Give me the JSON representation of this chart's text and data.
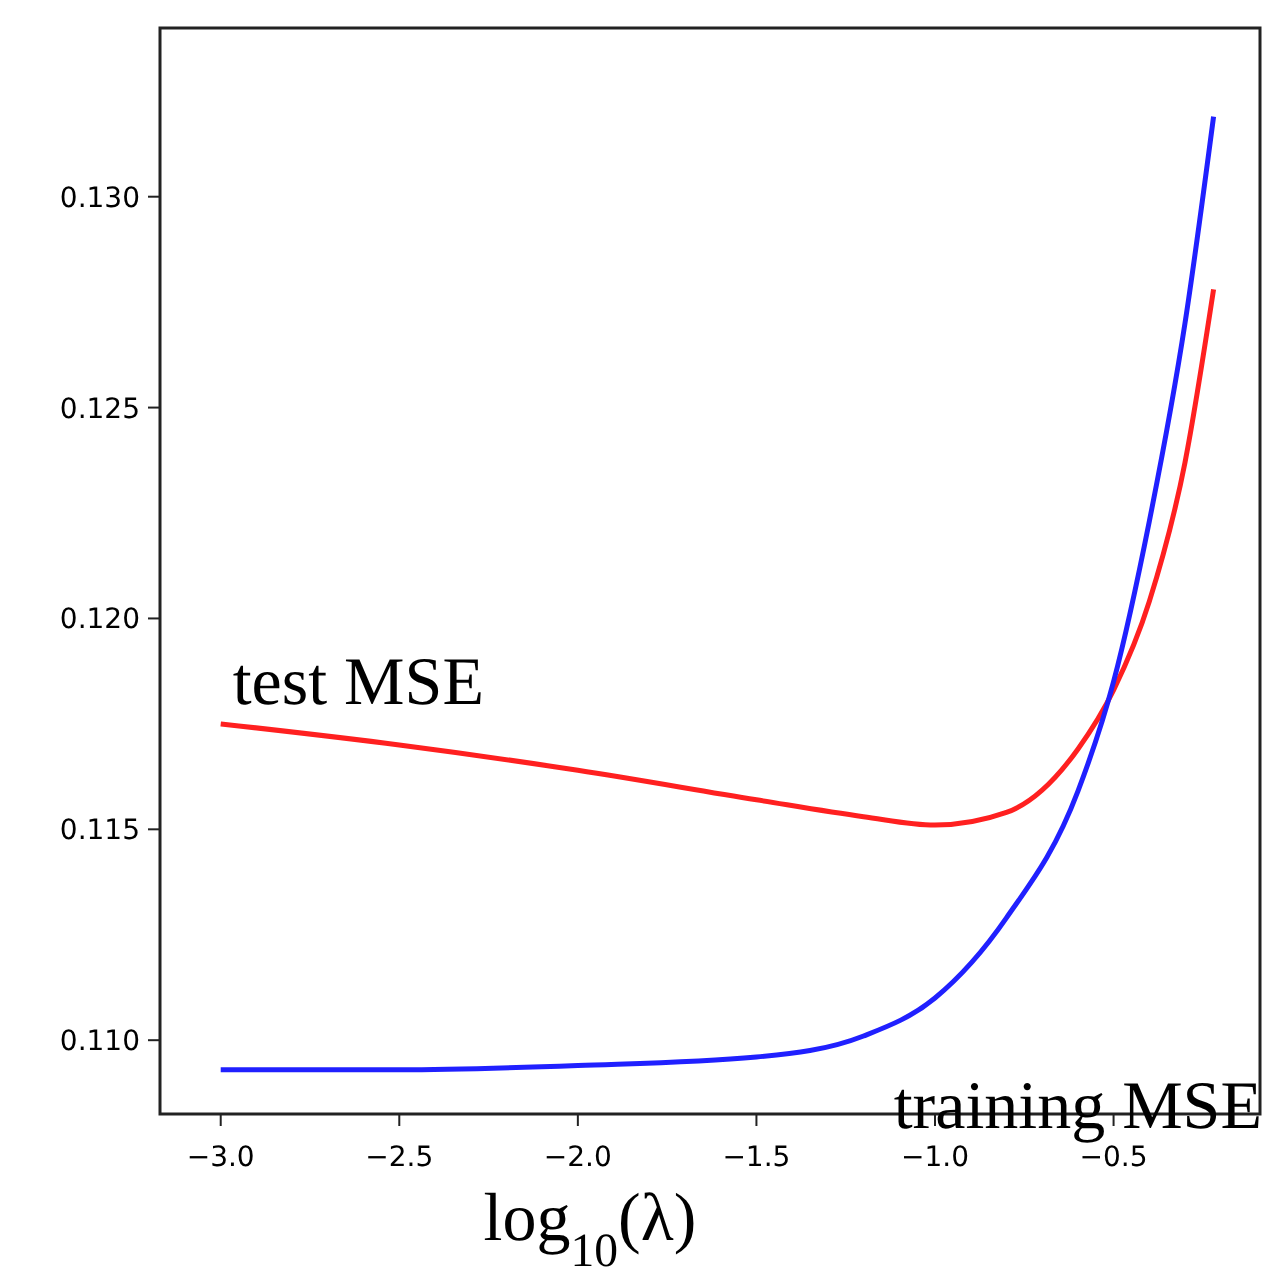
{
  "chart_data": {
    "type": "line",
    "xlabel": "log$_{10}$(λ)",
    "xlim": [
      -3.17,
      -0.09
    ],
    "ylim": [
      0.10825,
      0.134
    ],
    "xticks": [
      {
        "value": -3,
        "label": "−3.0"
      },
      {
        "value": -2.5,
        "label": "−2.5"
      },
      {
        "value": -2,
        "label": "−2.0"
      },
      {
        "value": -1.5,
        "label": "−1.5"
      },
      {
        "value": -1,
        "label": "−1.0"
      },
      {
        "value": -0.5,
        "label": "−0.5"
      }
    ],
    "yticks": [
      {
        "value": 0.11,
        "label": "0.110"
      },
      {
        "value": 0.115,
        "label": "0.115"
      },
      {
        "value": 0.12,
        "label": "0.120"
      },
      {
        "value": 0.125,
        "label": "0.125"
      },
      {
        "value": 0.13,
        "label": "0.130"
      }
    ],
    "grid": false,
    "marker": "none",
    "line_style": "solid",
    "x": [
      -3,
      -2.5,
      -2,
      -1.5,
      -1.2,
      -1,
      -0.8,
      -0.6,
      -0.5,
      -0.4,
      -0.3,
      -0.22
    ],
    "series": [
      {
        "name": "test MSE",
        "color": "#ff2020",
        "values": [
          0.1175,
          0.117,
          0.1164,
          0.1157,
          0.1153,
          0.1151,
          0.1154,
          0.1169,
          0.1183,
          0.1204,
          0.1237,
          0.1278
        ]
      },
      {
        "name": "training MSE",
        "color": "#2020ff",
        "values": [
          0.1093,
          0.1093,
          0.1094,
          0.1096,
          0.1101,
          0.111,
          0.1129,
          0.1159,
          0.1185,
          0.1223,
          0.127,
          0.1319
        ]
      }
    ]
  }
}
